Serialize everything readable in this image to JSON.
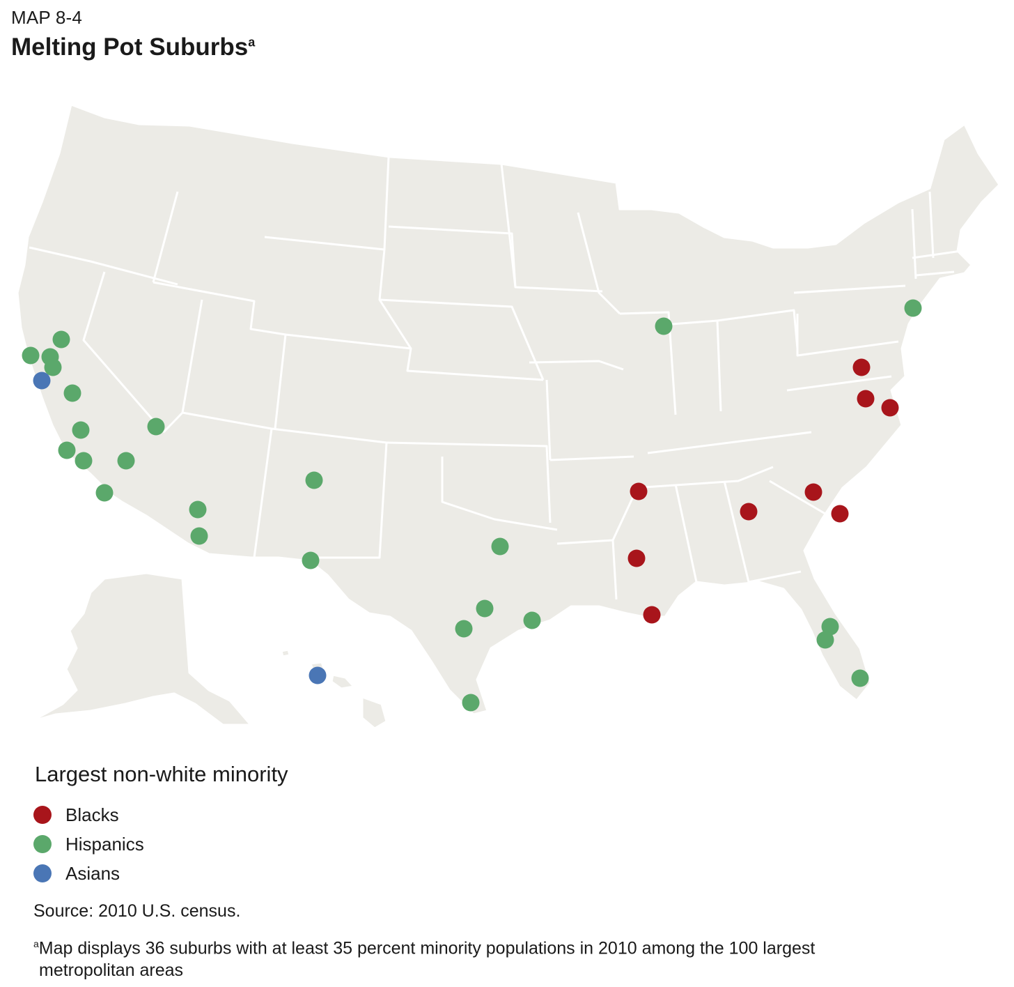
{
  "header": {
    "label": "MAP 8-4",
    "title": "Melting Pot Suburbs",
    "title_footnote_mark": "a"
  },
  "legend": {
    "title": "Largest non-white minority",
    "items": [
      {
        "label": "Blacks",
        "color": "#a8151b"
      },
      {
        "label": "Hispanics",
        "color": "#5ba86b"
      },
      {
        "label": "Asians",
        "color": "#4a76b5"
      }
    ]
  },
  "source": "Source: 2010 U.S. census.",
  "footnote": {
    "mark": "a",
    "line1": "Map displays 36 suburbs with at least 35 percent minority populations in 2010 among the 100 largest",
    "line2": "metropolitan areas"
  },
  "map": {
    "land_color": "#ecebe6",
    "border_color": "#ffffff",
    "suburbs": [
      {
        "group": "Hispanics",
        "region": "Bay Area CA"
      },
      {
        "group": "Hispanics",
        "region": "Bay Area CA"
      },
      {
        "group": "Hispanics",
        "region": "Bay Area CA"
      },
      {
        "group": "Hispanics",
        "region": "Bay Area CA"
      },
      {
        "group": "Asians",
        "region": "Bay Area CA"
      },
      {
        "group": "Hispanics",
        "region": "Central Valley CA"
      },
      {
        "group": "Hispanics",
        "region": "Central Coast CA"
      },
      {
        "group": "Hispanics",
        "region": "Southern California"
      },
      {
        "group": "Hispanics",
        "region": "Southern California"
      },
      {
        "group": "Hispanics",
        "region": "Southern California"
      },
      {
        "group": "Hispanics",
        "region": "San Diego CA"
      },
      {
        "group": "Hispanics",
        "region": "Las Vegas NV"
      },
      {
        "group": "Hispanics",
        "region": "Phoenix AZ"
      },
      {
        "group": "Hispanics",
        "region": "Tucson AZ"
      },
      {
        "group": "Hispanics",
        "region": "Albuquerque NM"
      },
      {
        "group": "Hispanics",
        "region": "El Paso TX"
      },
      {
        "group": "Hispanics",
        "region": "Dallas TX"
      },
      {
        "group": "Hispanics",
        "region": "Austin TX"
      },
      {
        "group": "Hispanics",
        "region": "San Antonio TX"
      },
      {
        "group": "Hispanics",
        "region": "Houston TX"
      },
      {
        "group": "Hispanics",
        "region": "McAllen TX"
      },
      {
        "group": "Blacks",
        "region": "Memphis TN"
      },
      {
        "group": "Blacks",
        "region": "Jackson MS"
      },
      {
        "group": "Blacks",
        "region": "New Orleans LA"
      },
      {
        "group": "Blacks",
        "region": "Atlanta GA"
      },
      {
        "group": "Blacks",
        "region": "Columbia SC"
      },
      {
        "group": "Blacks",
        "region": "Charleston SC"
      },
      {
        "group": "Blacks",
        "region": "Washington DC area"
      },
      {
        "group": "Blacks",
        "region": "Richmond VA"
      },
      {
        "group": "Blacks",
        "region": "Virginia Beach VA"
      },
      {
        "group": "Hispanics",
        "region": "Chicago IL"
      },
      {
        "group": "Hispanics",
        "region": "New York area"
      },
      {
        "group": "Hispanics",
        "region": "Orlando FL"
      },
      {
        "group": "Hispanics",
        "region": "Tampa FL"
      },
      {
        "group": "Hispanics",
        "region": "Miami FL"
      },
      {
        "group": "Asians",
        "region": "Honolulu HI"
      }
    ]
  }
}
